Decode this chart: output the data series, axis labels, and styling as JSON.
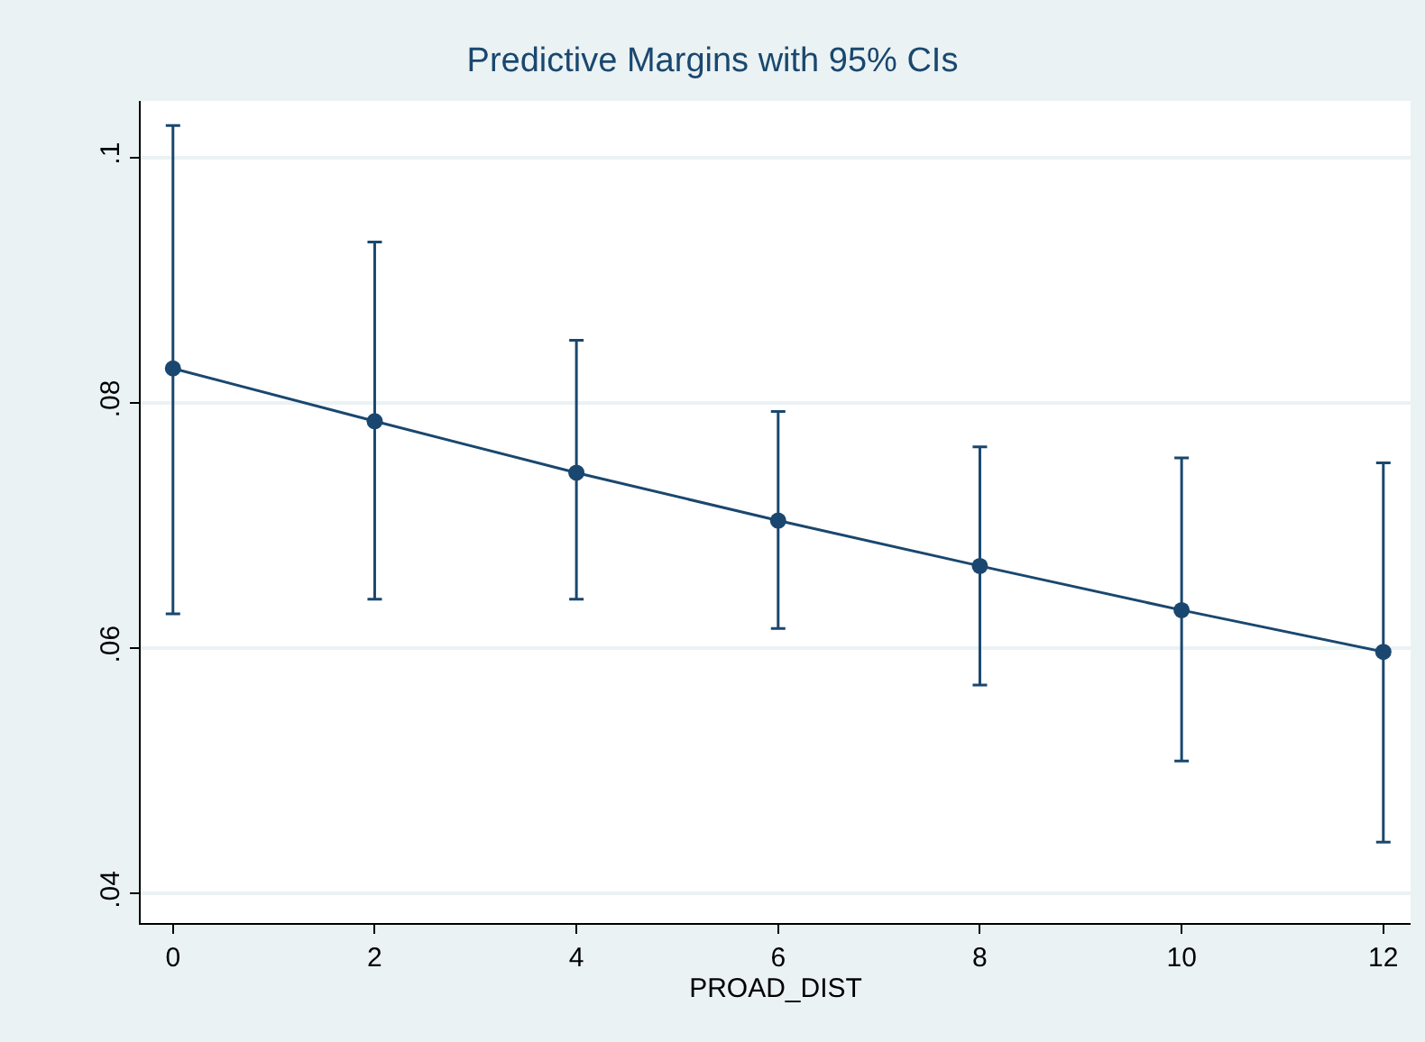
{
  "chart_data": {
    "type": "line",
    "title": "Predictive Margins with 95% CIs",
    "xlabel": "PROAD_DIST",
    "x": [
      0,
      2,
      4,
      6,
      8,
      10,
      12
    ],
    "series": [
      {
        "color": "#1a476f",
        "values": [
          0.0828,
          0.0785,
          0.0743,
          0.0704,
          0.0667,
          0.0631,
          0.0597
        ],
        "errors": [
          [
            0.0628,
            0.1026
          ],
          [
            0.064,
            0.0931
          ],
          [
            0.064,
            0.0851
          ],
          [
            0.0616,
            0.0793
          ],
          [
            0.057,
            0.0764
          ],
          [
            0.0508,
            0.0755
          ],
          [
            0.0442,
            0.0751
          ]
        ]
      }
    ],
    "xlim": [
      -0.32,
      12.27
    ],
    "xticks": [
      0,
      2,
      4,
      6,
      8,
      10,
      12
    ],
    "ylim": [
      0.0376,
      0.1046
    ],
    "yticks": [
      {
        "value": 0.04,
        "label": ".04"
      },
      {
        "value": 0.06,
        "label": ".06"
      },
      {
        "value": 0.08,
        "label": ".08"
      },
      {
        "value": 0.1,
        "label": ".1"
      }
    ],
    "grid": "y",
    "marker": "circle",
    "line_style": "solid"
  }
}
